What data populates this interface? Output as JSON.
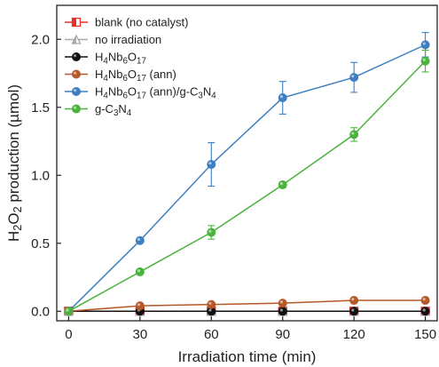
{
  "chart_data": {
    "type": "line",
    "x": [
      0,
      30,
      60,
      90,
      120,
      150
    ],
    "xlabel": "Irradiation time (min)",
    "ylabel_parts": [
      {
        "t": "H",
        "s": "n"
      },
      {
        "t": "2",
        "s": "sub"
      },
      {
        "t": "O",
        "s": "n"
      },
      {
        "t": "2",
        "s": "sub"
      },
      {
        "t": " production (µmol)",
        "s": "n"
      }
    ],
    "xlim": [
      -5,
      155
    ],
    "ylim": [
      -0.07,
      2.25
    ],
    "xticks": [
      "0",
      "30",
      "60",
      "90",
      "120",
      "150"
    ],
    "yticks": [
      "0.0",
      "0.5",
      "1.0",
      "1.5",
      "2.0"
    ],
    "legend_position": "top-left",
    "series": [
      {
        "name_parts": [
          {
            "t": "blank (no catalyst)",
            "s": "n"
          }
        ],
        "color": "#e8302a",
        "marker": "half-square",
        "values": [
          0,
          0,
          0,
          0,
          0,
          0
        ],
        "errors": [
          0,
          0,
          0,
          0,
          0,
          0
        ]
      },
      {
        "name_parts": [
          {
            "t": "no irradiation",
            "s": "n"
          }
        ],
        "color": "#a8a8a8",
        "marker": "half-triangle",
        "values": [
          0,
          0,
          0,
          0,
          0,
          0
        ],
        "errors": [
          0,
          0,
          0,
          0,
          0,
          0
        ]
      },
      {
        "name_parts": [
          {
            "t": "H",
            "s": "n"
          },
          {
            "t": "4",
            "s": "sub"
          },
          {
            "t": "Nb",
            "s": "n"
          },
          {
            "t": "6",
            "s": "sub"
          },
          {
            "t": "O",
            "s": "n"
          },
          {
            "t": "17",
            "s": "sub"
          }
        ],
        "color": "#111111",
        "marker": "circle",
        "values": [
          0,
          0,
          0,
          0,
          0,
          0
        ],
        "errors": [
          0,
          0,
          0,
          0,
          0,
          0
        ]
      },
      {
        "name_parts": [
          {
            "t": "H",
            "s": "n"
          },
          {
            "t": "4",
            "s": "sub"
          },
          {
            "t": "Nb",
            "s": "n"
          },
          {
            "t": "6",
            "s": "sub"
          },
          {
            "t": "O",
            "s": "n"
          },
          {
            "t": "17",
            "s": "sub"
          },
          {
            "t": " (ann)",
            "s": "n"
          }
        ],
        "color": "#b5582a",
        "marker": "circle",
        "values": [
          0,
          0.04,
          0.05,
          0.06,
          0.08,
          0.08
        ],
        "errors": [
          0,
          0,
          0,
          0,
          0,
          0
        ]
      },
      {
        "name_parts": [
          {
            "t": "H",
            "s": "n"
          },
          {
            "t": "4",
            "s": "sub"
          },
          {
            "t": "Nb",
            "s": "n"
          },
          {
            "t": "6",
            "s": "sub"
          },
          {
            "t": "O",
            "s": "n"
          },
          {
            "t": "17",
            "s": "sub"
          },
          {
            "t": " (ann)/g-C",
            "s": "n"
          },
          {
            "t": "3",
            "s": "sub"
          },
          {
            "t": "N",
            "s": "n"
          },
          {
            "t": "4",
            "s": "sub"
          }
        ],
        "color": "#3d7fc1",
        "marker": "circle",
        "values": [
          0,
          0.52,
          1.08,
          1.57,
          1.72,
          1.96
        ],
        "errors": [
          0,
          0,
          0.16,
          0.12,
          0.11,
          0.09
        ]
      },
      {
        "name_parts": [
          {
            "t": "g-C",
            "s": "n"
          },
          {
            "t": "3",
            "s": "sub"
          },
          {
            "t": "N",
            "s": "n"
          },
          {
            "t": "4",
            "s": "sub"
          }
        ],
        "color": "#4bb33d",
        "marker": "circle",
        "values": [
          0,
          0.29,
          0.58,
          0.93,
          1.3,
          1.84
        ],
        "errors": [
          0,
          0,
          0.05,
          0.02,
          0.05,
          0.08
        ]
      }
    ]
  }
}
